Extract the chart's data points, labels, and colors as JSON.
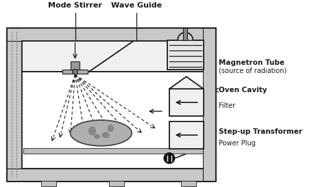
{
  "bg_color": "#ffffff",
  "outer_bg": "#e0e0e0",
  "line_color": "#1a1a1a",
  "dark_gray": "#444444",
  "mid_gray": "#888888",
  "light_gray": "#cccccc",
  "labels": {
    "mode_stirrer": "Mode Stirrer",
    "wave_guide": "Wave Guide",
    "magnetron_tube": "Magnetron Tube",
    "magnetron_sub": "(source of radiation)",
    "oven_cavity": "Oven Cavity",
    "filter": "Filter",
    "step_up": "Step-up Transformer",
    "power_plug": "Power Plug"
  },
  "figsize": [
    4.74,
    2.74
  ],
  "dpi": 100
}
